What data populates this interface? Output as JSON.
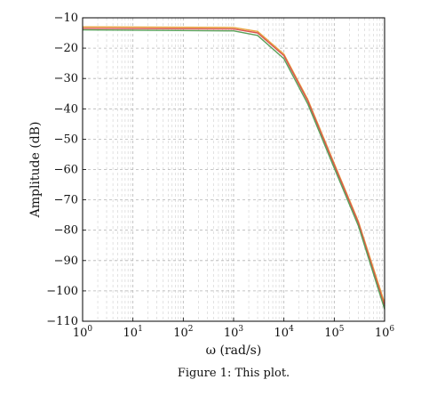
{
  "chart_data": {
    "type": "line",
    "x_scale": "log",
    "xlabel": "ω (rad/s)",
    "ylabel": "Amplitude (dB)",
    "xlim": [
      1,
      1000000
    ],
    "ylim": [
      -110,
      -10
    ],
    "grid": true,
    "x_ticks": [
      {
        "base": "10",
        "exp": "0"
      },
      {
        "base": "10",
        "exp": "1"
      },
      {
        "base": "10",
        "exp": "2"
      },
      {
        "base": "10",
        "exp": "3"
      },
      {
        "base": "10",
        "exp": "4"
      },
      {
        "base": "10",
        "exp": "5"
      },
      {
        "base": "10",
        "exp": "6"
      }
    ],
    "y_ticks": [
      "−10",
      "−20",
      "−30",
      "−40",
      "−50",
      "−60",
      "−70",
      "−80",
      "−90",
      "−100",
      "−110"
    ],
    "series": [
      {
        "color": "#e8a33c",
        "x": [
          1,
          1000,
          3000,
          10000,
          30000,
          100000,
          300000,
          1000000
        ],
        "y": [
          -13.0,
          -13.2,
          -14.5,
          -22,
          -37,
          -58,
          -77,
          -104
        ]
      },
      {
        "color": "#d9534f",
        "x": [
          1,
          1000,
          3000,
          10000,
          30000,
          100000,
          300000,
          1000000
        ],
        "y": [
          -13.5,
          -13.7,
          -15.0,
          -22.5,
          -37.5,
          -58.5,
          -77.5,
          -105
        ]
      },
      {
        "color": "#5aa05a",
        "x": [
          1,
          1000,
          3000,
          10000,
          30000,
          100000,
          300000,
          1000000
        ],
        "y": [
          -14.0,
          -14.3,
          -15.8,
          -23.5,
          -38.5,
          -59.5,
          -78.5,
          -106
        ]
      }
    ]
  },
  "caption": "Figure 1: This plot."
}
